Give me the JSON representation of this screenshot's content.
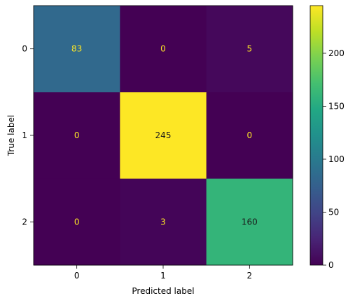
{
  "chart_data": {
    "type": "heatmap",
    "title": "",
    "xlabel": "Predicted label",
    "ylabel": "True label",
    "x_categories": [
      "0",
      "1",
      "2"
    ],
    "y_categories": [
      "0",
      "1",
      "2"
    ],
    "values": [
      [
        83,
        0,
        5
      ],
      [
        0,
        245,
        0
      ],
      [
        0,
        3,
        160
      ]
    ],
    "colormap": "viridis",
    "colorbar": {
      "min": 0,
      "max": 245,
      "ticks": [
        0,
        50,
        100,
        150,
        200
      ],
      "tick_labels": [
        "0",
        "50",
        "100",
        "150",
        "200"
      ]
    },
    "text_colors": {
      "dark_cell": "#fde725",
      "light_cell": "#1a1a1a"
    },
    "grid": false,
    "legend": "none"
  }
}
